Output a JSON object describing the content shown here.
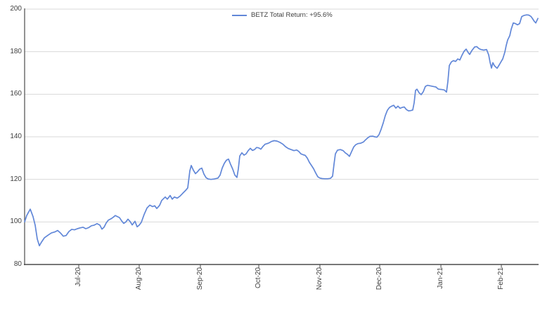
{
  "chart_data": {
    "type": "line",
    "title": "",
    "legend": {
      "label": "BETZ Total Return: +95.6%",
      "position": "top-center"
    },
    "grid": true,
    "colors": {
      "line": "#6187d8",
      "gridline": "#d9d9d9",
      "axis": "#4a4a4a",
      "text": "#3f3f3f"
    },
    "ylim": [
      80,
      200
    ],
    "y_ticks": [
      200,
      180,
      160,
      140,
      120,
      100,
      80
    ],
    "x_ticks": [
      {
        "label": "Jul-20",
        "pos": 0.1055
      },
      {
        "label": "Aug-20",
        "pos": 0.2233
      },
      {
        "label": "Sep-20",
        "pos": 0.3425
      },
      {
        "label": "Oct-20",
        "pos": 0.4562
      },
      {
        "label": "Nov-20",
        "pos": 0.5753
      },
      {
        "label": "Dec-20",
        "pos": 0.6918
      },
      {
        "label": "Jan-21",
        "pos": 0.811
      },
      {
        "label": "Feb-21",
        "pos": 0.9288
      }
    ],
    "series": [
      {
        "name": "BETZ Total Return: +95.6%",
        "final_value": 195.6,
        "points": [
          [
            0.0,
            100.0
          ],
          [
            0.0041,
            103.0
          ],
          [
            0.011,
            106.0
          ],
          [
            0.0164,
            102.5
          ],
          [
            0.0205,
            98.5
          ],
          [
            0.0247,
            92.0
          ],
          [
            0.0288,
            88.8
          ],
          [
            0.0329,
            90.5
          ],
          [
            0.0384,
            92.5
          ],
          [
            0.0452,
            93.7
          ],
          [
            0.0521,
            94.8
          ],
          [
            0.0589,
            95.3
          ],
          [
            0.0644,
            96.0
          ],
          [
            0.0699,
            94.8
          ],
          [
            0.0753,
            93.3
          ],
          [
            0.0808,
            93.6
          ],
          [
            0.0863,
            95.5
          ],
          [
            0.0918,
            96.5
          ],
          [
            0.0973,
            96.3
          ],
          [
            0.1027,
            96.8
          ],
          [
            0.1082,
            97.2
          ],
          [
            0.1137,
            97.5
          ],
          [
            0.1192,
            96.8
          ],
          [
            0.1247,
            97.3
          ],
          [
            0.1301,
            98.2
          ],
          [
            0.1356,
            98.5
          ],
          [
            0.1411,
            99.2
          ],
          [
            0.1466,
            98.5
          ],
          [
            0.1507,
            96.6
          ],
          [
            0.1548,
            97.5
          ],
          [
            0.1589,
            99.5
          ],
          [
            0.163,
            100.8
          ],
          [
            0.1685,
            101.5
          ],
          [
            0.1726,
            102.2
          ],
          [
            0.1767,
            103.0
          ],
          [
            0.1808,
            102.5
          ],
          [
            0.1849,
            102.0
          ],
          [
            0.189,
            100.5
          ],
          [
            0.1932,
            99.3
          ],
          [
            0.1973,
            100.0
          ],
          [
            0.2014,
            101.3
          ],
          [
            0.2055,
            100.2
          ],
          [
            0.2096,
            98.6
          ],
          [
            0.2151,
            100.3
          ],
          [
            0.2192,
            97.7
          ],
          [
            0.2233,
            98.5
          ],
          [
            0.2274,
            99.8
          ],
          [
            0.2329,
            103.5
          ],
          [
            0.2384,
            106.5
          ],
          [
            0.2438,
            107.9
          ],
          [
            0.2493,
            107.2
          ],
          [
            0.2534,
            107.6
          ],
          [
            0.2575,
            106.3
          ],
          [
            0.263,
            107.8
          ],
          [
            0.2671,
            110.1
          ],
          [
            0.274,
            111.7
          ],
          [
            0.2781,
            110.7
          ],
          [
            0.2836,
            112.4
          ],
          [
            0.2877,
            110.7
          ],
          [
            0.2918,
            111.7
          ],
          [
            0.2973,
            111.2
          ],
          [
            0.3027,
            112.1
          ],
          [
            0.3082,
            113.5
          ],
          [
            0.3137,
            114.8
          ],
          [
            0.3178,
            116.0
          ],
          [
            0.3219,
            124.0
          ],
          [
            0.3247,
            126.5
          ],
          [
            0.3288,
            124.3
          ],
          [
            0.3329,
            122.7
          ],
          [
            0.337,
            123.6
          ],
          [
            0.3411,
            124.8
          ],
          [
            0.3452,
            125.3
          ],
          [
            0.3493,
            122.5
          ],
          [
            0.3534,
            120.8
          ],
          [
            0.3575,
            120.2
          ],
          [
            0.363,
            120.0
          ],
          [
            0.3699,
            120.2
          ],
          [
            0.3767,
            120.6
          ],
          [
            0.3808,
            122.0
          ],
          [
            0.3849,
            125.3
          ],
          [
            0.389,
            127.5
          ],
          [
            0.3932,
            129.0
          ],
          [
            0.3973,
            129.5
          ],
          [
            0.4014,
            127.0
          ],
          [
            0.4055,
            124.8
          ],
          [
            0.4096,
            122.0
          ],
          [
            0.4137,
            120.9
          ],
          [
            0.4164,
            125.0
          ],
          [
            0.4192,
            131.0
          ],
          [
            0.4233,
            132.5
          ],
          [
            0.4274,
            131.4
          ],
          [
            0.4315,
            132.0
          ],
          [
            0.4356,
            133.5
          ],
          [
            0.4397,
            134.6
          ],
          [
            0.4438,
            133.6
          ],
          [
            0.4479,
            134.0
          ],
          [
            0.4521,
            135.0
          ],
          [
            0.4562,
            134.8
          ],
          [
            0.4603,
            134.2
          ],
          [
            0.4644,
            135.5
          ],
          [
            0.4685,
            136.5
          ],
          [
            0.4726,
            136.8
          ],
          [
            0.4767,
            137.2
          ],
          [
            0.4808,
            137.8
          ],
          [
            0.4863,
            138.2
          ],
          [
            0.4918,
            138.0
          ],
          [
            0.4973,
            137.4
          ],
          [
            0.5027,
            136.6
          ],
          [
            0.5082,
            135.4
          ],
          [
            0.5137,
            134.5
          ],
          [
            0.5192,
            134.0
          ],
          [
            0.5247,
            133.5
          ],
          [
            0.5301,
            133.8
          ],
          [
            0.5342,
            133.1
          ],
          [
            0.5384,
            132.0
          ],
          [
            0.5425,
            131.6
          ],
          [
            0.5466,
            131.3
          ],
          [
            0.5507,
            130.0
          ],
          [
            0.5548,
            128.0
          ],
          [
            0.5589,
            126.5
          ],
          [
            0.563,
            125.0
          ],
          [
            0.5671,
            123.0
          ],
          [
            0.5712,
            121.2
          ],
          [
            0.5753,
            120.6
          ],
          [
            0.5795,
            120.4
          ],
          [
            0.5849,
            120.3
          ],
          [
            0.5904,
            120.3
          ],
          [
            0.5959,
            120.5
          ],
          [
            0.6,
            121.5
          ],
          [
            0.6027,
            127.0
          ],
          [
            0.6055,
            132.0
          ],
          [
            0.6096,
            133.7
          ],
          [
            0.6151,
            134.0
          ],
          [
            0.6205,
            133.5
          ],
          [
            0.6247,
            132.5
          ],
          [
            0.6288,
            131.8
          ],
          [
            0.6329,
            130.8
          ],
          [
            0.637,
            133.0
          ],
          [
            0.6411,
            135.2
          ],
          [
            0.6452,
            136.3
          ],
          [
            0.6493,
            136.8
          ],
          [
            0.6548,
            137.0
          ],
          [
            0.6603,
            137.6
          ],
          [
            0.6644,
            138.6
          ],
          [
            0.6685,
            139.5
          ],
          [
            0.6726,
            140.2
          ],
          [
            0.6781,
            140.3
          ],
          [
            0.6822,
            140.0
          ],
          [
            0.6863,
            139.8
          ],
          [
            0.6904,
            141.0
          ],
          [
            0.6945,
            143.5
          ],
          [
            0.6986,
            146.5
          ],
          [
            0.7027,
            150.0
          ],
          [
            0.7068,
            152.5
          ],
          [
            0.711,
            153.8
          ],
          [
            0.7151,
            154.4
          ],
          [
            0.7192,
            154.8
          ],
          [
            0.7233,
            153.5
          ],
          [
            0.7274,
            154.4
          ],
          [
            0.7315,
            153.4
          ],
          [
            0.7356,
            153.8
          ],
          [
            0.7397,
            154.0
          ],
          [
            0.7438,
            152.8
          ],
          [
            0.7479,
            152.2
          ],
          [
            0.7521,
            152.3
          ],
          [
            0.7562,
            152.6
          ],
          [
            0.7589,
            156.0
          ],
          [
            0.7616,
            161.8
          ],
          [
            0.7644,
            162.4
          ],
          [
            0.7685,
            160.7
          ],
          [
            0.7726,
            159.8
          ],
          [
            0.7767,
            161.2
          ],
          [
            0.7808,
            163.7
          ],
          [
            0.7849,
            164.2
          ],
          [
            0.789,
            164.0
          ],
          [
            0.7932,
            163.8
          ],
          [
            0.7973,
            163.6
          ],
          [
            0.8014,
            163.4
          ],
          [
            0.8055,
            162.5
          ],
          [
            0.8096,
            162.3
          ],
          [
            0.8137,
            162.2
          ],
          [
            0.8178,
            162.0
          ],
          [
            0.8219,
            161.0
          ],
          [
            0.8247,
            166.0
          ],
          [
            0.8274,
            173.5
          ],
          [
            0.8315,
            175.2
          ],
          [
            0.8356,
            175.8
          ],
          [
            0.8397,
            175.4
          ],
          [
            0.8438,
            176.6
          ],
          [
            0.8479,
            176.1
          ],
          [
            0.852,
            178.3
          ],
          [
            0.8562,
            180.2
          ],
          [
            0.8603,
            181.2
          ],
          [
            0.8644,
            179.5
          ],
          [
            0.8671,
            178.7
          ],
          [
            0.8712,
            180.5
          ],
          [
            0.8767,
            182.2
          ],
          [
            0.8808,
            182.4
          ],
          [
            0.8849,
            181.5
          ],
          [
            0.889,
            181.0
          ],
          [
            0.8945,
            180.7
          ],
          [
            0.9,
            181.0
          ],
          [
            0.9041,
            178.5
          ],
          [
            0.9068,
            175.0
          ],
          [
            0.9096,
            172.3
          ],
          [
            0.9123,
            174.8
          ],
          [
            0.9151,
            173.5
          ],
          [
            0.9178,
            172.8
          ],
          [
            0.9205,
            172.2
          ],
          [
            0.9247,
            173.8
          ],
          [
            0.9288,
            175.5
          ],
          [
            0.9315,
            176.6
          ],
          [
            0.9356,
            179.8
          ],
          [
            0.9384,
            183.0
          ],
          [
            0.9411,
            185.5
          ],
          [
            0.9452,
            187.5
          ],
          [
            0.9479,
            190.5
          ],
          [
            0.9521,
            193.5
          ],
          [
            0.9562,
            193.2
          ],
          [
            0.9603,
            192.6
          ],
          [
            0.9644,
            193.2
          ],
          [
            0.9685,
            196.5
          ],
          [
            0.9726,
            197.0
          ],
          [
            0.9781,
            197.3
          ],
          [
            0.9822,
            197.2
          ],
          [
            0.9863,
            196.6
          ],
          [
            0.989,
            195.7
          ],
          [
            0.9932,
            194.2
          ],
          [
            0.9959,
            193.5
          ],
          [
            1.0,
            195.6
          ]
        ]
      }
    ]
  }
}
